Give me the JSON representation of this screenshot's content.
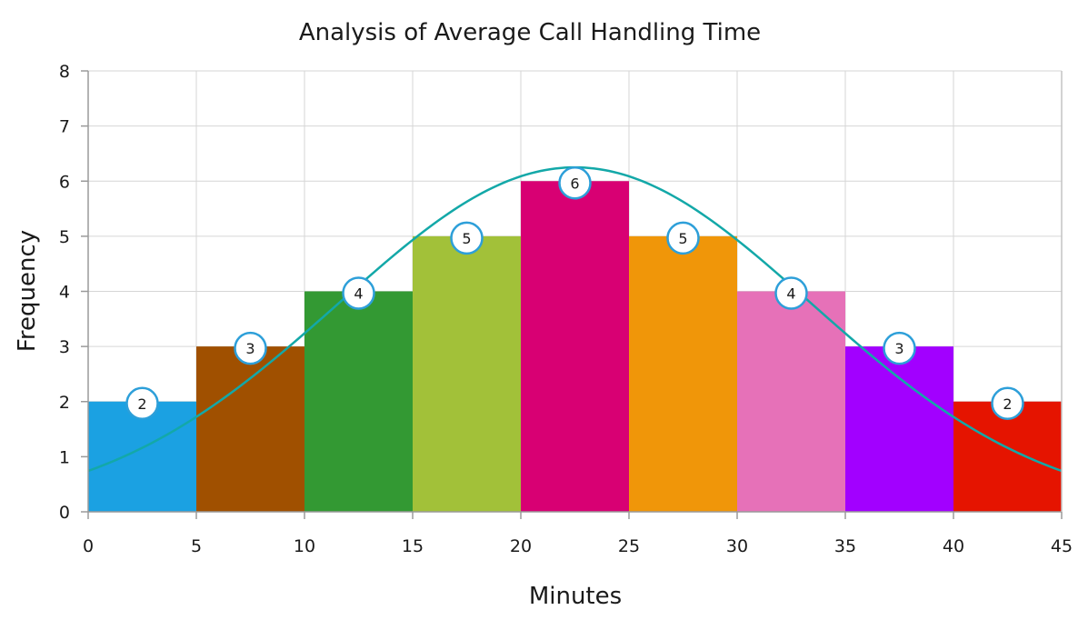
{
  "chart_data": {
    "type": "bar",
    "title": "Analysis of Average Call Handling Time",
    "xlabel": "Minutes",
    "ylabel": "Frequency",
    "xlim": [
      0,
      45
    ],
    "ylim": [
      0,
      8
    ],
    "x_ticks": [
      0,
      5,
      10,
      15,
      20,
      25,
      30,
      35,
      40,
      45
    ],
    "y_ticks": [
      0,
      1,
      2,
      3,
      4,
      5,
      6,
      7,
      8
    ],
    "grid": true,
    "bins": [
      {
        "start": 0,
        "end": 5,
        "value": 2,
        "color": "#1ba1e2"
      },
      {
        "start": 5,
        "end": 10,
        "value": 3,
        "color": "#a05000"
      },
      {
        "start": 10,
        "end": 15,
        "value": 4,
        "color": "#339933"
      },
      {
        "start": 15,
        "end": 20,
        "value": 5,
        "color": "#a2c139"
      },
      {
        "start": 20,
        "end": 25,
        "value": 6,
        "color": "#d80073"
      },
      {
        "start": 25,
        "end": 30,
        "value": 5,
        "color": "#f09609"
      },
      {
        "start": 30,
        "end": 35,
        "value": 4,
        "color": "#e671b8"
      },
      {
        "start": 35,
        "end": 40,
        "value": 3,
        "color": "#a200ff"
      },
      {
        "start": 40,
        "end": 45,
        "value": 2,
        "color": "#e51400"
      }
    ],
    "normal_curve": {
      "color": "#13a8a8",
      "mean": 22.5,
      "std_dev": 10.9,
      "peak": 6.25
    },
    "data_label_border_color": "#2d9fd9"
  }
}
